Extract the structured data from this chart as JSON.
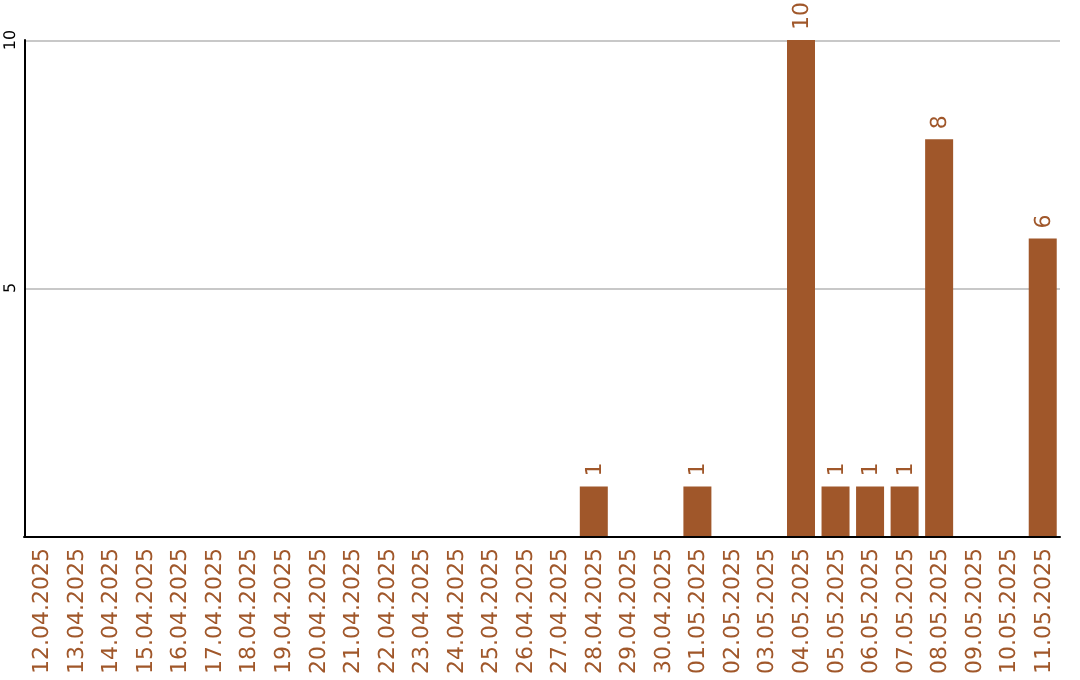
{
  "chart_data": {
    "type": "bar",
    "categories": [
      "12.04.2025",
      "13.04.2025",
      "14.04.2025",
      "15.04.2025",
      "16.04.2025",
      "17.04.2025",
      "18.04.2025",
      "19.04.2025",
      "20.04.2025",
      "21.04.2025",
      "22.04.2025",
      "23.04.2025",
      "24.04.2025",
      "25.04.2025",
      "26.04.2025",
      "27.04.2025",
      "28.04.2025",
      "29.04.2025",
      "30.04.2025",
      "01.05.2025",
      "02.05.2025",
      "03.05.2025",
      "04.05.2025",
      "05.05.2025",
      "06.05.2025",
      "07.05.2025",
      "08.05.2025",
      "09.05.2025",
      "10.05.2025",
      "11.05.2025"
    ],
    "values": [
      0,
      0,
      0,
      0,
      0,
      0,
      0,
      0,
      0,
      0,
      0,
      0,
      0,
      0,
      0,
      0,
      1,
      0,
      0,
      1,
      0,
      0,
      10,
      1,
      1,
      1,
      8,
      0,
      0,
      6
    ],
    "value_labels": [
      null,
      null,
      null,
      null,
      null,
      null,
      null,
      null,
      null,
      null,
      null,
      null,
      null,
      null,
      null,
      null,
      "1",
      null,
      null,
      "1",
      null,
      null,
      "10",
      "1",
      "1",
      "1",
      "8",
      null,
      null,
      "6"
    ],
    "color": "#a0572a",
    "ylim": [
      0,
      10
    ],
    "yticks": [
      5,
      10
    ],
    "grid": "y"
  }
}
